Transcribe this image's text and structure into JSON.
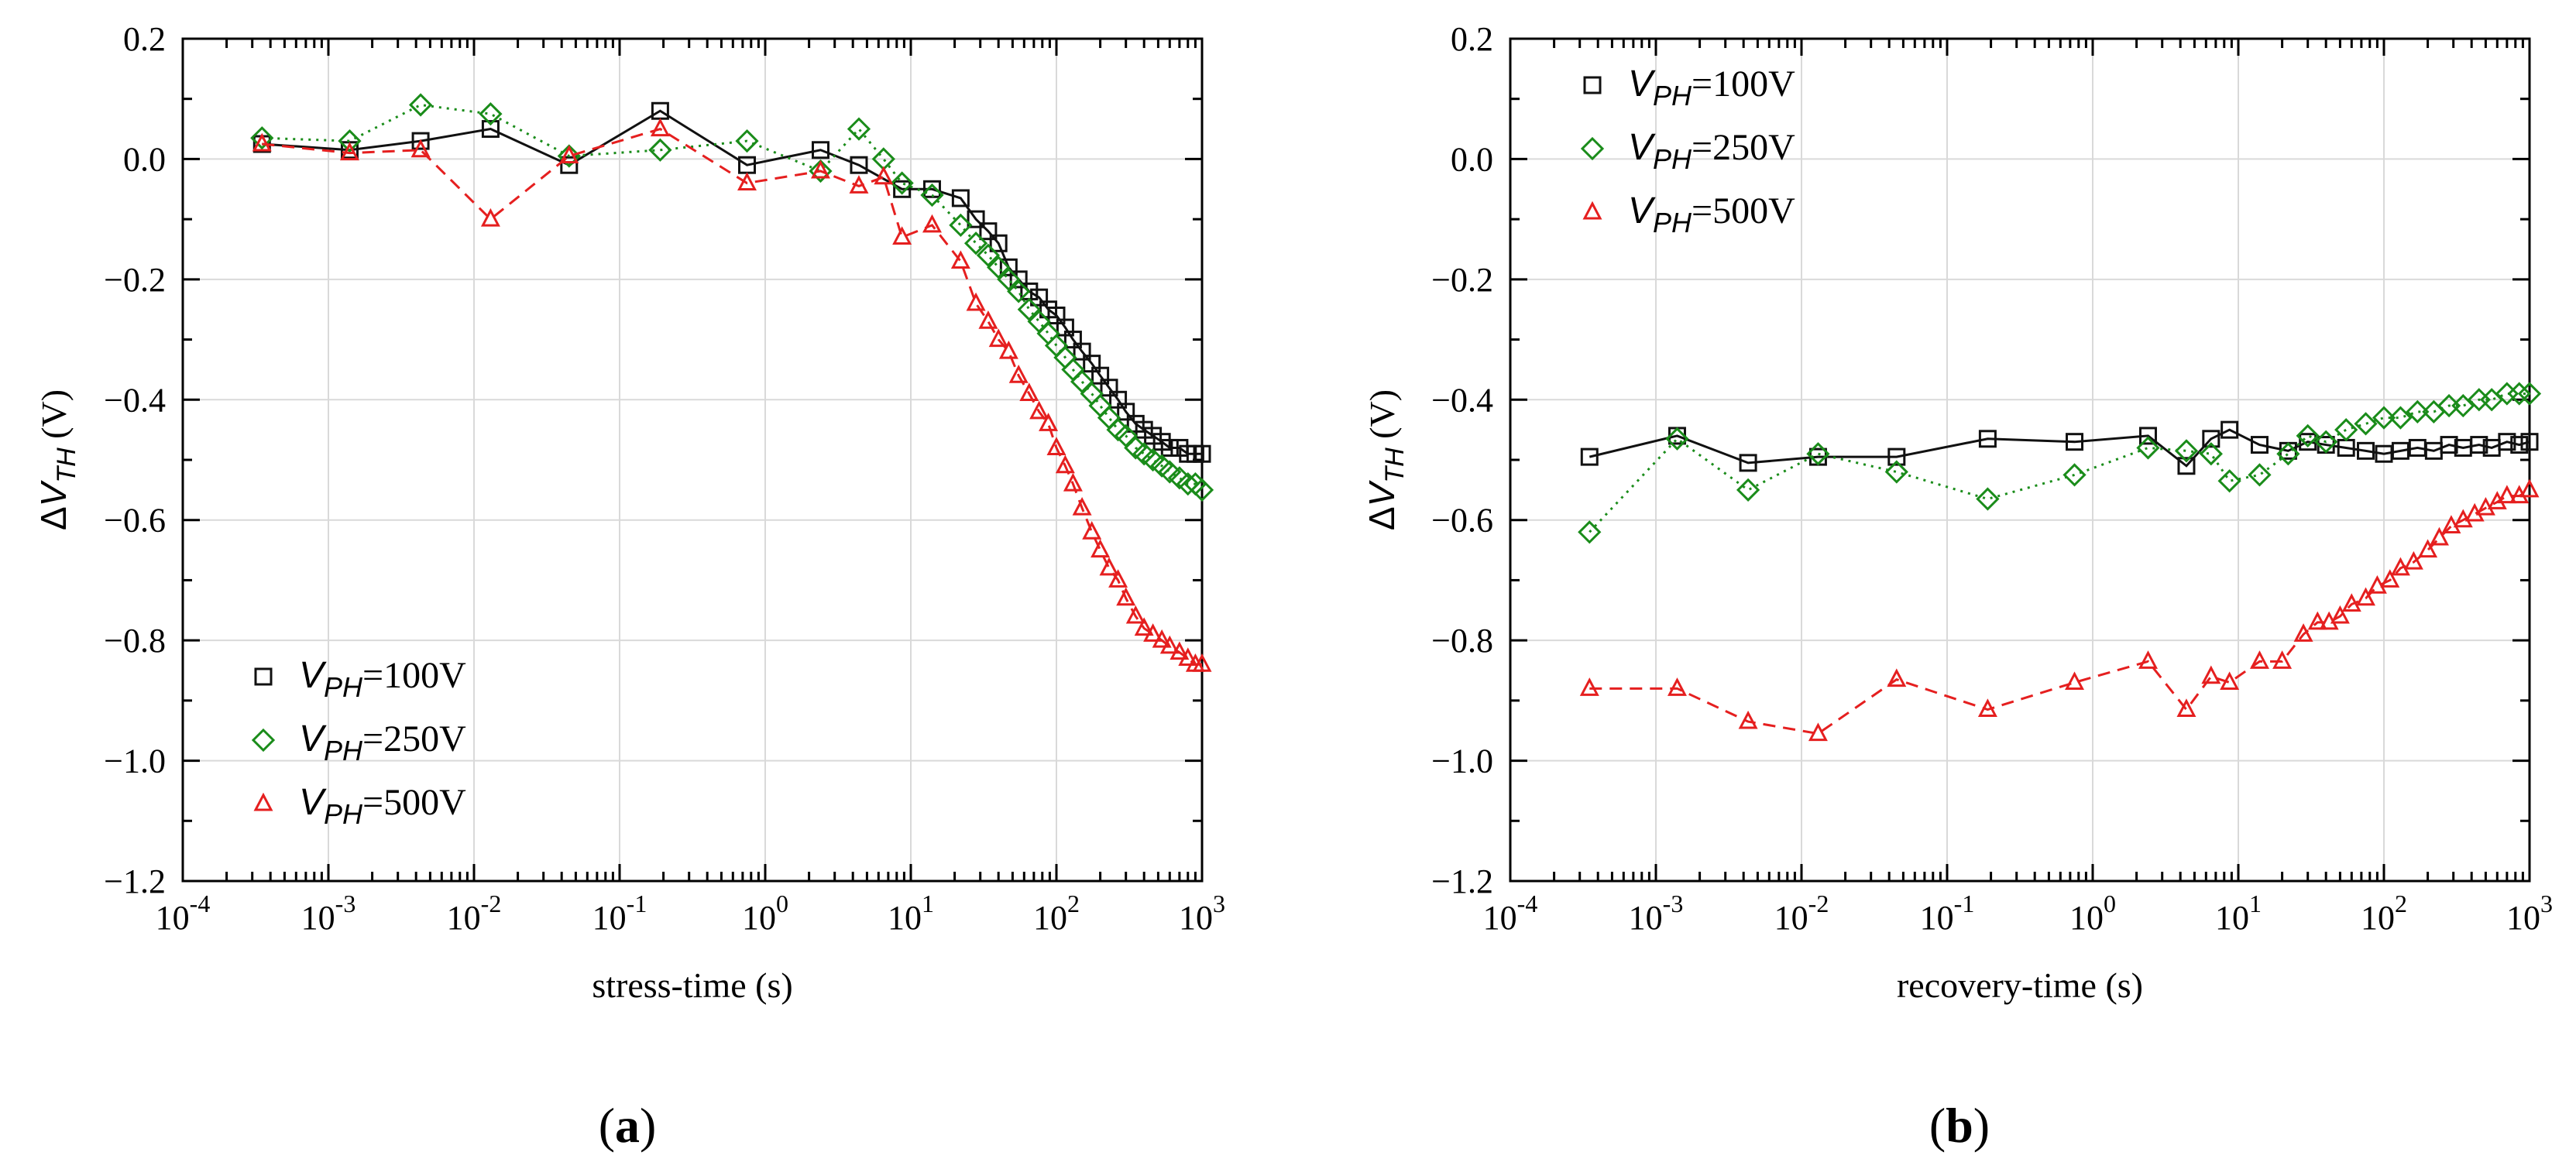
{
  "chart_data": [
    {
      "type": "scatter",
      "panel_label": "a",
      "xlabel": "stress-time (s)",
      "ylabel": "ΔV_TH (V)",
      "xscale": "log",
      "xlim": [
        0.0001,
        1000
      ],
      "ylim": [
        -1.2,
        0.2
      ],
      "yticks": [
        "0.2",
        "0.0",
        "−0.2",
        "−0.4",
        "−0.6",
        "−0.8",
        "−1.0",
        "−1.2"
      ],
      "legend_position": "bottom-left",
      "grid": true,
      "series": [
        {
          "name": "V_PH=100V",
          "name_italic": "V",
          "name_sub": "PH",
          "name_rest": "=100V",
          "color": "#111111",
          "marker": "square",
          "line": "solid",
          "x": [
            0.00035,
            0.0014,
            0.0043,
            0.013,
            0.045,
            0.19,
            0.75,
            2.4,
            4.4,
            8.7,
            14,
            22,
            28,
            34,
            40,
            47,
            55,
            65,
            76,
            88,
            100,
            115,
            130,
            150,
            175,
            200,
            230,
            265,
            300,
            350,
            400,
            460,
            530,
            600,
            700,
            800,
            900,
            1000
          ],
          "y": [
            0.025,
            0.015,
            0.03,
            0.05,
            -0.01,
            0.08,
            -0.01,
            0.015,
            -0.01,
            -0.05,
            -0.05,
            -0.065,
            -0.1,
            -0.12,
            -0.14,
            -0.18,
            -0.2,
            -0.22,
            -0.23,
            -0.25,
            -0.26,
            -0.28,
            -0.3,
            -0.32,
            -0.34,
            -0.36,
            -0.38,
            -0.4,
            -0.42,
            -0.44,
            -0.45,
            -0.46,
            -0.47,
            -0.48,
            -0.48,
            -0.49,
            -0.49,
            -0.49
          ]
        },
        {
          "name": "V_PH=250V",
          "name_italic": "V",
          "name_sub": "PH",
          "name_rest": "=250V",
          "color": "#1a8c1a",
          "marker": "diamond",
          "line": "dotted",
          "x": [
            0.00035,
            0.0014,
            0.0043,
            0.013,
            0.045,
            0.19,
            0.75,
            2.4,
            4.4,
            6.5,
            8.7,
            14,
            22,
            28,
            34,
            40,
            47,
            55,
            65,
            76,
            88,
            100,
            115,
            130,
            150,
            175,
            200,
            230,
            265,
            300,
            350,
            400,
            460,
            530,
            600,
            700,
            800,
            900,
            1000
          ],
          "y": [
            0.035,
            0.03,
            0.09,
            0.075,
            0.005,
            0.015,
            0.03,
            -0.02,
            0.05,
            0.0,
            -0.04,
            -0.06,
            -0.11,
            -0.14,
            -0.16,
            -0.18,
            -0.2,
            -0.22,
            -0.25,
            -0.27,
            -0.29,
            -0.31,
            -0.33,
            -0.35,
            -0.37,
            -0.39,
            -0.41,
            -0.43,
            -0.45,
            -0.46,
            -0.48,
            -0.49,
            -0.5,
            -0.51,
            -0.52,
            -0.53,
            -0.54,
            -0.54,
            -0.55
          ]
        },
        {
          "name": "V_PH=500V",
          "name_italic": "V",
          "name_sub": "PH",
          "name_rest": "=500V",
          "color": "#e51f1f",
          "marker": "triangle",
          "line": "dashed",
          "x": [
            0.00035,
            0.0014,
            0.0043,
            0.013,
            0.045,
            0.19,
            0.75,
            2.4,
            4.4,
            6.5,
            8.7,
            14,
            22,
            28,
            34,
            40,
            47,
            55,
            65,
            76,
            88,
            100,
            115,
            130,
            150,
            175,
            200,
            230,
            265,
            300,
            350,
            400,
            460,
            530,
            600,
            700,
            800,
            900,
            1000
          ],
          "y": [
            0.025,
            0.01,
            0.015,
            -0.1,
            0.005,
            0.05,
            -0.04,
            -0.02,
            -0.045,
            -0.03,
            -0.13,
            -0.11,
            -0.17,
            -0.24,
            -0.27,
            -0.3,
            -0.32,
            -0.36,
            -0.39,
            -0.42,
            -0.44,
            -0.48,
            -0.51,
            -0.54,
            -0.58,
            -0.62,
            -0.65,
            -0.68,
            -0.7,
            -0.73,
            -0.76,
            -0.78,
            -0.79,
            -0.8,
            -0.81,
            -0.82,
            -0.83,
            -0.84,
            -0.84
          ]
        }
      ]
    },
    {
      "type": "scatter",
      "panel_label": "b",
      "xlabel": "recovery-time (s)",
      "ylabel": "ΔV_TH (V)",
      "xscale": "log",
      "xlim": [
        0.0001,
        1000
      ],
      "ylim": [
        -1.2,
        0.2
      ],
      "yticks": [
        "0.2",
        "0.0",
        "−0.2",
        "−0.4",
        "−0.6",
        "−0.8",
        "−1.0",
        "−1.2"
      ],
      "legend_position": "top-left",
      "grid": true,
      "series": [
        {
          "name": "V_PH=100V",
          "name_italic": "V",
          "name_sub": "PH",
          "name_rest": "=100V",
          "color": "#111111",
          "marker": "square",
          "line": "solid",
          "x": [
            0.00035,
            0.0014,
            0.0043,
            0.013,
            0.045,
            0.19,
            0.75,
            2.4,
            4.4,
            6.5,
            8.7,
            14,
            22,
            30,
            40,
            55,
            75,
            100,
            130,
            170,
            220,
            280,
            350,
            450,
            550,
            700,
            850,
            1000
          ],
          "y": [
            -0.495,
            -0.46,
            -0.505,
            -0.495,
            -0.495,
            -0.465,
            -0.47,
            -0.46,
            -0.51,
            -0.465,
            -0.45,
            -0.475,
            -0.485,
            -0.47,
            -0.475,
            -0.48,
            -0.485,
            -0.49,
            -0.485,
            -0.48,
            -0.485,
            -0.475,
            -0.48,
            -0.475,
            -0.48,
            -0.47,
            -0.475,
            -0.47
          ]
        },
        {
          "name": "V_PH=250V",
          "name_italic": "V",
          "name_sub": "PH",
          "name_rest": "=250V",
          "color": "#1a8c1a",
          "marker": "diamond",
          "line": "dotted",
          "x": [
            0.00035,
            0.0014,
            0.0043,
            0.013,
            0.045,
            0.19,
            0.75,
            2.4,
            4.4,
            6.5,
            8.7,
            14,
            22,
            30,
            40,
            55,
            75,
            100,
            130,
            170,
            220,
            280,
            350,
            450,
            550,
            700,
            850,
            1000
          ],
          "y": [
            -0.62,
            -0.465,
            -0.55,
            -0.49,
            -0.52,
            -0.565,
            -0.525,
            -0.48,
            -0.485,
            -0.49,
            -0.535,
            -0.525,
            -0.49,
            -0.46,
            -0.47,
            -0.45,
            -0.44,
            -0.43,
            -0.43,
            -0.42,
            -0.42,
            -0.41,
            -0.41,
            -0.4,
            -0.4,
            -0.39,
            -0.39,
            -0.39
          ]
        },
        {
          "name": "V_PH=500V",
          "name_italic": "V",
          "name_sub": "PH",
          "name_rest": "=500V",
          "color": "#e51f1f",
          "marker": "triangle",
          "line": "dashed",
          "x": [
            0.00035,
            0.0014,
            0.0043,
            0.013,
            0.045,
            0.19,
            0.75,
            2.4,
            4.4,
            6.5,
            8.7,
            14,
            20,
            28,
            35,
            42,
            50,
            60,
            75,
            90,
            110,
            130,
            160,
            200,
            240,
            290,
            350,
            420,
            500,
            600,
            700,
            850,
            1000
          ],
          "y": [
            -0.88,
            -0.88,
            -0.935,
            -0.955,
            -0.865,
            -0.915,
            -0.87,
            -0.835,
            -0.915,
            -0.86,
            -0.87,
            -0.835,
            -0.835,
            -0.79,
            -0.77,
            -0.77,
            -0.76,
            -0.74,
            -0.73,
            -0.71,
            -0.7,
            -0.68,
            -0.67,
            -0.65,
            -0.63,
            -0.61,
            -0.6,
            -0.59,
            -0.58,
            -0.57,
            -0.56,
            -0.56,
            -0.55
          ]
        }
      ]
    }
  ]
}
